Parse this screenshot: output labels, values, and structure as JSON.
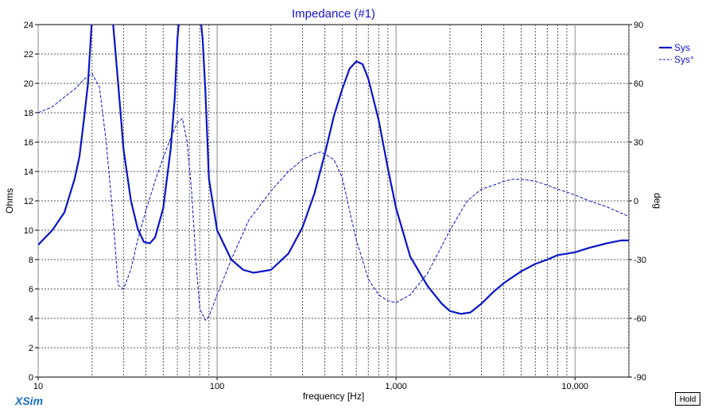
{
  "chart_data": {
    "type": "line",
    "title": "Impedance (#1)",
    "xlabel": "frequency [Hz]",
    "ylabel": "Ohms",
    "y2label": "deg",
    "xscale": "log",
    "xlim": [
      10,
      20000
    ],
    "ylim": [
      0,
      24
    ],
    "y2lim": [
      -90,
      90
    ],
    "x_ticks": [
      {
        "value": 10,
        "label": "10"
      },
      {
        "value": 100,
        "label": "100"
      },
      {
        "value": 1000,
        "label": "1,000"
      },
      {
        "value": 10000,
        "label": "10,000"
      }
    ],
    "y_ticks": [
      "0",
      "2",
      "4",
      "6",
      "8",
      "10",
      "12",
      "14",
      "16",
      "18",
      "20",
      "22",
      "24"
    ],
    "y2_ticks": [
      "-90",
      "-60",
      "-30",
      "0",
      "30",
      "60",
      "90"
    ],
    "grid": true,
    "legend_position": "right",
    "series": [
      {
        "name": "Sys",
        "axis": "left",
        "style": "solid",
        "color": "#0a14c8",
        "x": [
          10,
          12,
          14,
          16,
          17,
          18,
          19,
          20,
          21,
          24,
          26,
          28,
          30,
          33,
          36,
          39,
          42,
          45,
          50,
          55,
          58,
          60,
          62,
          80,
          83,
          86,
          90,
          100,
          120,
          140,
          160,
          200,
          250,
          300,
          350,
          400,
          450,
          500,
          550,
          600,
          650,
          700,
          800,
          900,
          1000,
          1200,
          1500,
          1800,
          2000,
          2300,
          2600,
          3000,
          3500,
          4000,
          5000,
          6000,
          7000,
          8000,
          10000,
          12000,
          15000,
          18000,
          20000
        ],
        "values": [
          9.0,
          10.0,
          11.2,
          13.5,
          15.0,
          17.5,
          20.0,
          24.5,
          27,
          27,
          24.6,
          20,
          15.5,
          12,
          10.1,
          9.2,
          9.1,
          9.5,
          11.5,
          15.5,
          19,
          23,
          25,
          25,
          23,
          19.5,
          13.5,
          10.0,
          8.0,
          7.3,
          7.1,
          7.3,
          8.4,
          10.2,
          12.5,
          15.2,
          17.8,
          19.6,
          21.0,
          21.5,
          21.3,
          20.3,
          17.5,
          14.2,
          11.5,
          8.2,
          6.2,
          5.0,
          4.5,
          4.3,
          4.4,
          5.0,
          5.8,
          6.4,
          7.2,
          7.7,
          8.0,
          8.3,
          8.5,
          8.8,
          9.1,
          9.3,
          9.3
        ]
      },
      {
        "name": "Sys°",
        "axis": "right",
        "style": "dashed",
        "color": "#0a14c8",
        "x": [
          10,
          12,
          14,
          16,
          18,
          20,
          22,
          24,
          26,
          28,
          30,
          33,
          36,
          40,
          45,
          50,
          55,
          60,
          64,
          68,
          72,
          76,
          80,
          86,
          90,
          100,
          120,
          150,
          200,
          250,
          300,
          350,
          380,
          450,
          500,
          550,
          600,
          700,
          800,
          900,
          1000,
          1200,
          1500,
          2000,
          2500,
          3000,
          3500,
          4000,
          4500,
          5000,
          6000,
          7000,
          8000,
          10000,
          12000,
          15000,
          20000
        ],
        "values": [
          45,
          48,
          53,
          57,
          62,
          65,
          58,
          30,
          -5,
          -43,
          -45,
          -35,
          -20,
          -5,
          10,
          22,
          32,
          40,
          42,
          30,
          5,
          -30,
          -55,
          -61,
          -59,
          -48,
          -30,
          -10,
          5,
          15,
          21,
          24,
          25,
          21,
          12,
          -5,
          -20,
          -40,
          -48,
          -51,
          -52,
          -48,
          -37,
          -15,
          0,
          6,
          8,
          10,
          11,
          11,
          10,
          8,
          6,
          3,
          0,
          -3,
          -8
        ]
      }
    ]
  },
  "footer": {
    "brand": "XSim",
    "hold_label": "Hold"
  }
}
